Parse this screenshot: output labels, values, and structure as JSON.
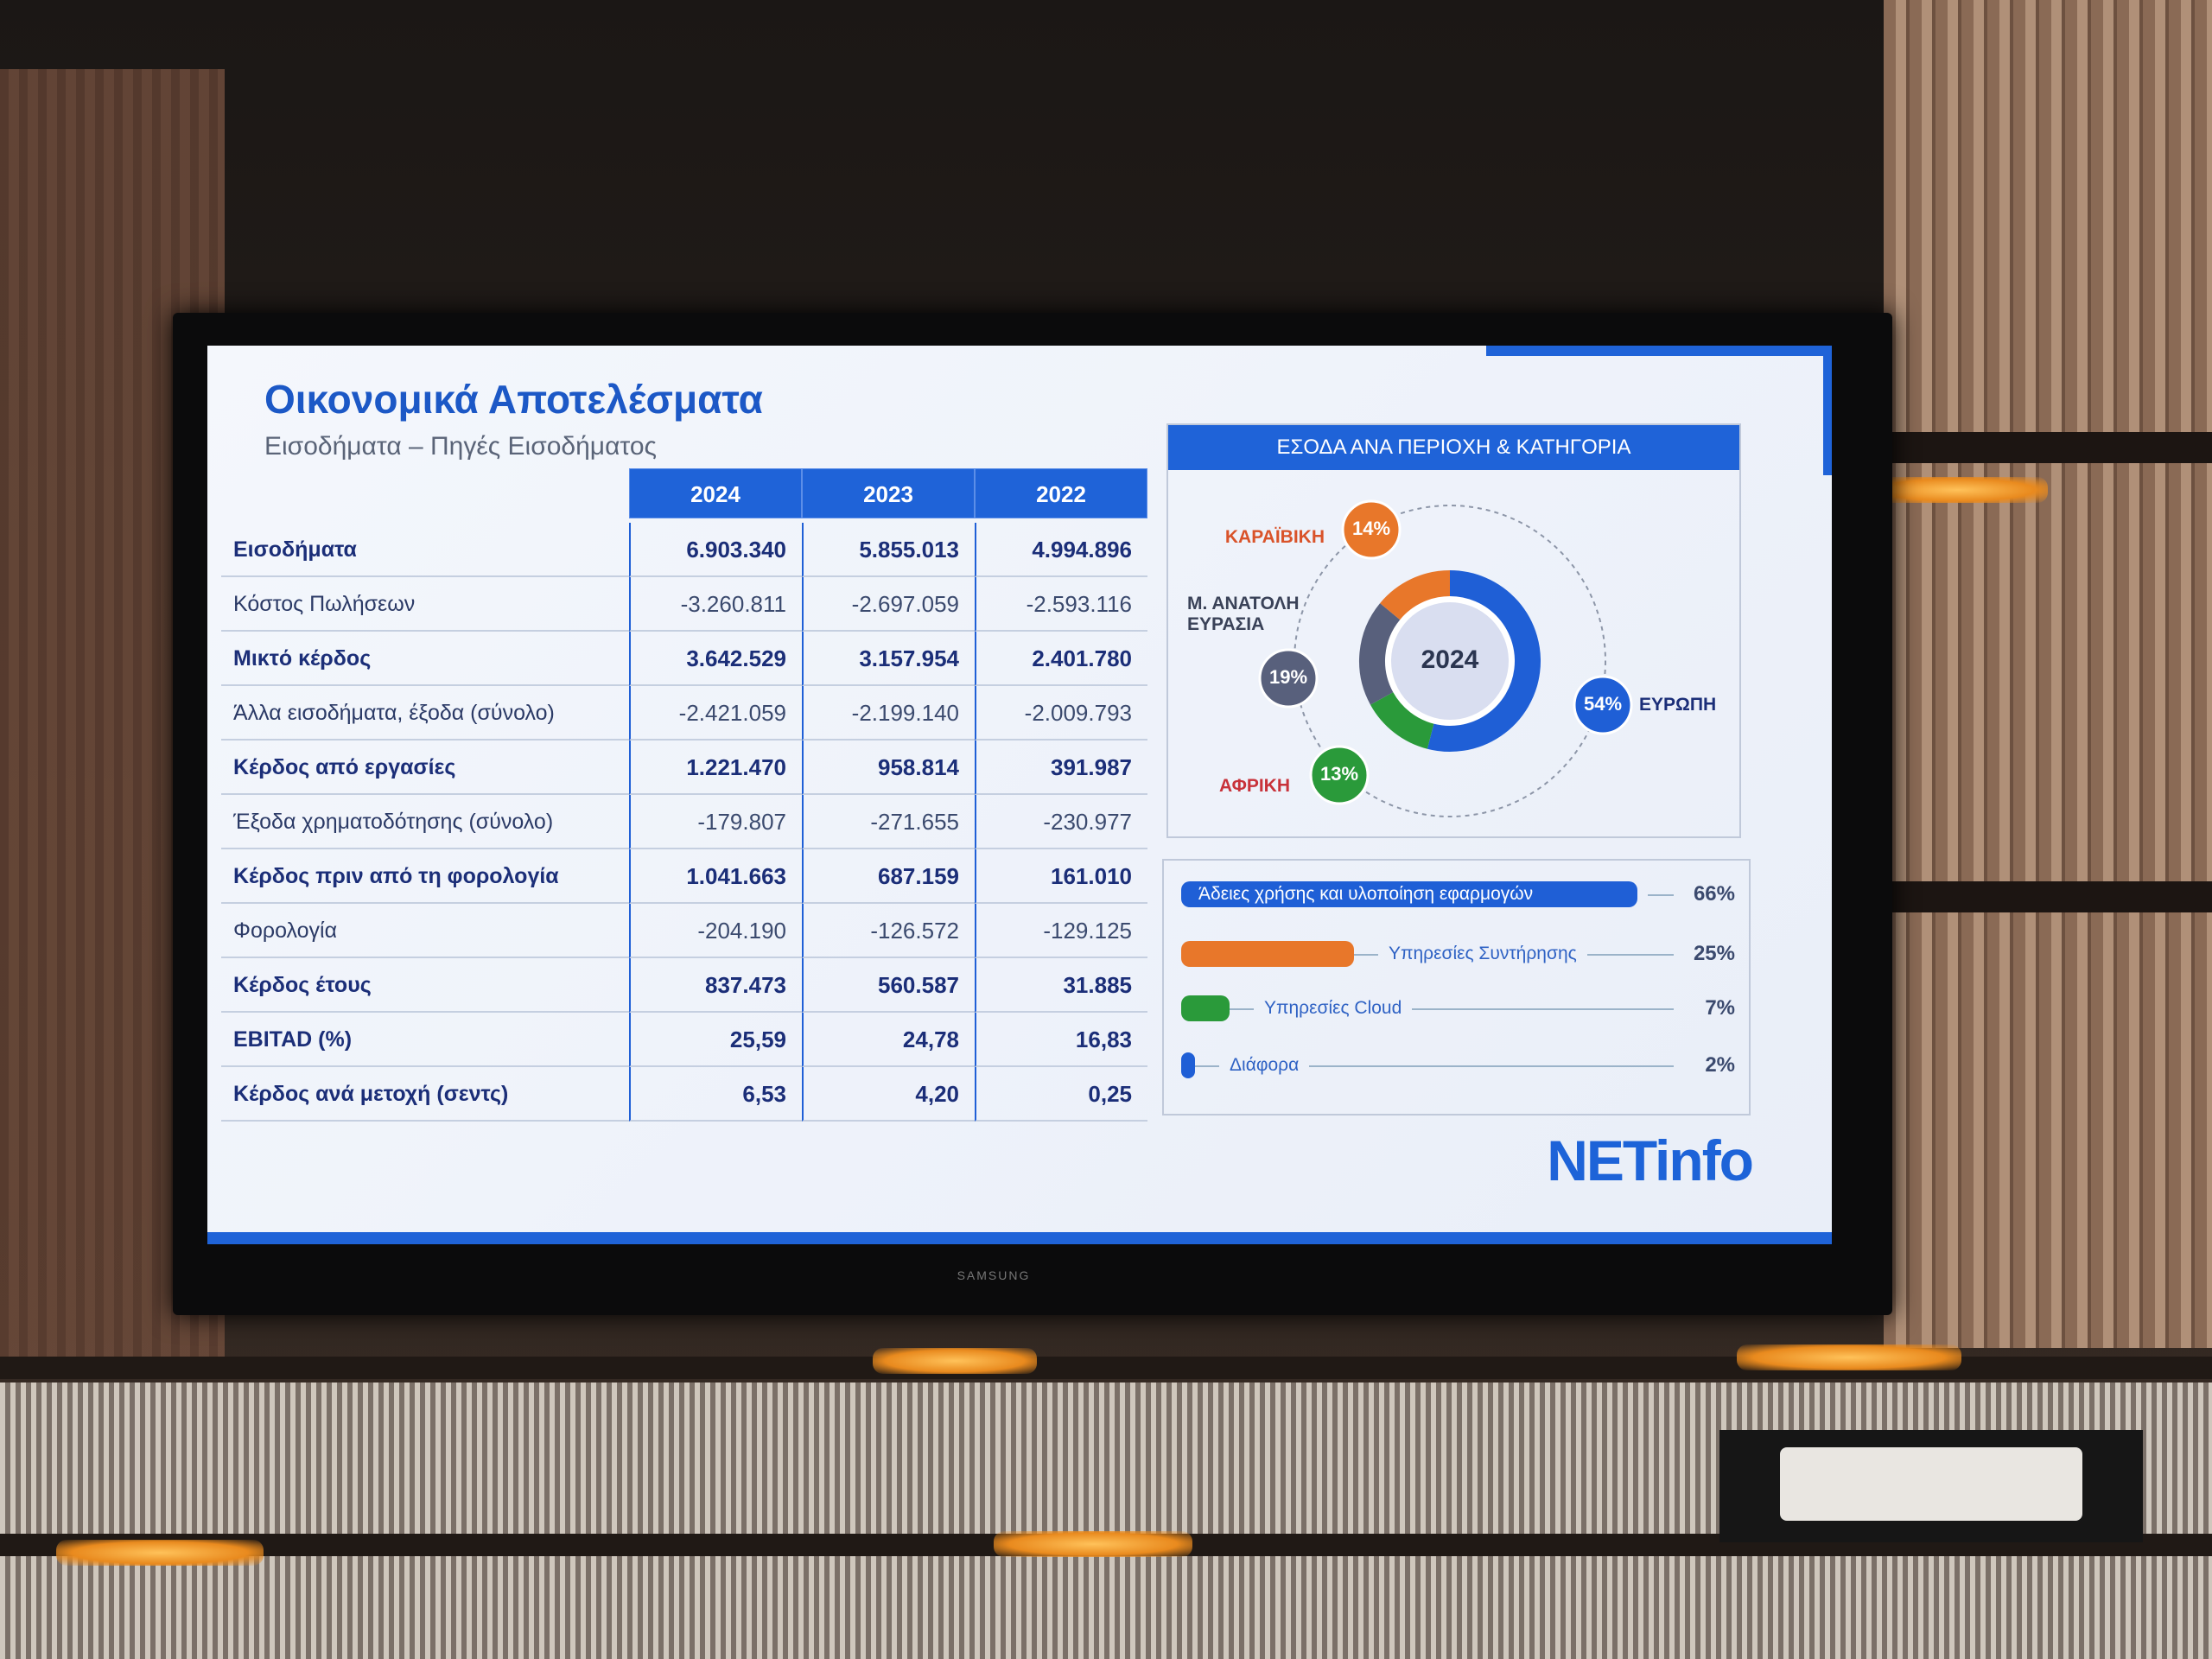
{
  "slide": {
    "title": "Οικονομικά Αποτελέσματα",
    "subtitle": "Εισοδήματα – Πηγές Εισοδήματος"
  },
  "table": {
    "columns": [
      "2024",
      "2023",
      "2022"
    ],
    "rows": [
      {
        "label": "Εισοδήματα",
        "values": [
          "6.903.340",
          "5.855.013",
          "4.994.896"
        ]
      },
      {
        "label": "Κόστος Πωλήσεων",
        "values": [
          "-3.260.811",
          "-2.697.059",
          "-2.593.116"
        ]
      },
      {
        "label": "Μικτό κέρδος",
        "values": [
          "3.642.529",
          "3.157.954",
          "2.401.780"
        ]
      },
      {
        "label": "Άλλα εισοδήματα, έξοδα (σύνολο)",
        "values": [
          "-2.421.059",
          "-2.199.140",
          "-2.009.793"
        ]
      },
      {
        "label": "Κέρδος από εργασίες",
        "values": [
          "1.221.470",
          "958.814",
          "391.987"
        ]
      },
      {
        "label": "Έξοδα χρηματοδότησης (σύνολο)",
        "values": [
          "-179.807",
          "-271.655",
          "-230.977"
        ]
      },
      {
        "label": "Κέρδος πριν από τη φορολογία",
        "values": [
          "1.041.663",
          "687.159",
          "161.010"
        ]
      },
      {
        "label": "Φορολογία",
        "values": [
          "-204.190",
          "-126.572",
          "-129.125"
        ]
      },
      {
        "label": "Κέρδος έτους",
        "values": [
          "837.473",
          "560.587",
          "31.885"
        ]
      },
      {
        "label": "EBITAD (%)",
        "values": [
          "25,59",
          "24,78",
          "16,83"
        ]
      },
      {
        "label": "Κέρδος ανά μετοχή (σεντς)",
        "values": [
          "6,53",
          "4,20",
          "0,25"
        ]
      }
    ]
  },
  "donut": {
    "type": "pie",
    "title": "ΕΣΟΔΑ ΑΝΑ ΠΕΡΙΟΧΗ & ΚΑΤΗΓΟΡΙΑ",
    "center_label": "2024",
    "categories": [
      "ΕΥΡΩΠΗ",
      "ΑΦΡΙΚΗ",
      "Μ. ΑΝΑΤΟΛΗ ΕΥΡΑΣΙΑ",
      "ΚΑΡΑΪΒΙΚΗ"
    ],
    "values": [
      54,
      13,
      19,
      14
    ],
    "value_labels": [
      "54%",
      "13%",
      "19%",
      "14%"
    ],
    "colors": [
      "#1f5fd6",
      "#2a9a3a",
      "#58607c",
      "#e8772a"
    ]
  },
  "bars": {
    "type": "bar",
    "categories": [
      "Άδειες χρήσης και υλοποίηση εφαρμογών",
      "Υπηρεσίες Συντήρησης",
      "Υπηρεσίες Cloud",
      "Διάφορα"
    ],
    "values": [
      66,
      25,
      7,
      2
    ],
    "value_labels": [
      "66%",
      "25%",
      "7%",
      "2%"
    ],
    "colors": [
      "#1f5fd6",
      "#e8772a",
      "#2a9a3a",
      "#1f5fd6"
    ]
  },
  "logo": "NETinfo",
  "tv_brand": "SAMSUNG"
}
